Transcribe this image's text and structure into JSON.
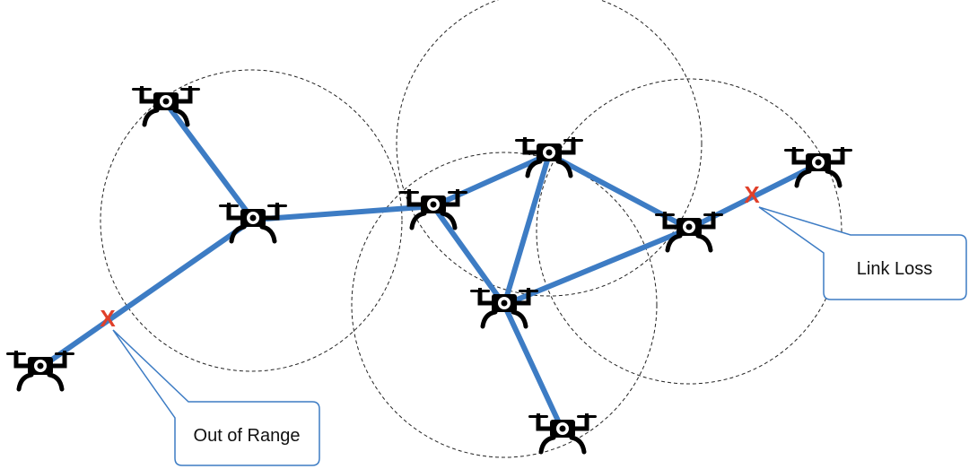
{
  "colors": {
    "link": "#3d7cc4",
    "failure_mark": "#e0402a",
    "range_circle": "#222222",
    "drone": "#000000",
    "callout_border": "#3d7cc4"
  },
  "drones": [
    {
      "id": "d1"
    },
    {
      "id": "d2"
    },
    {
      "id": "d3"
    },
    {
      "id": "d4"
    },
    {
      "id": "d5"
    },
    {
      "id": "d6"
    },
    {
      "id": "d7"
    },
    {
      "id": "d8"
    },
    {
      "id": "d9"
    }
  ],
  "links": [
    [
      "d1",
      "d2"
    ],
    [
      "d2",
      "d3"
    ],
    [
      "d3",
      "d4"
    ],
    [
      "d3",
      "d7"
    ],
    [
      "d4",
      "d7"
    ],
    [
      "d4",
      "d5"
    ],
    [
      "d7",
      "d5"
    ],
    [
      "d7",
      "d9"
    ]
  ],
  "broken_links": [
    {
      "from": "d2",
      "to": "d8",
      "mark": "X",
      "reason": "Out of Range"
    },
    {
      "from": "d5",
      "to": "d6",
      "mark": "X",
      "reason": "Link Loss"
    }
  ],
  "callouts": {
    "out_of_range": "Out of Range",
    "link_loss": "Link Loss"
  },
  "icons": {
    "drone": "quadcopter-drone-icon"
  }
}
